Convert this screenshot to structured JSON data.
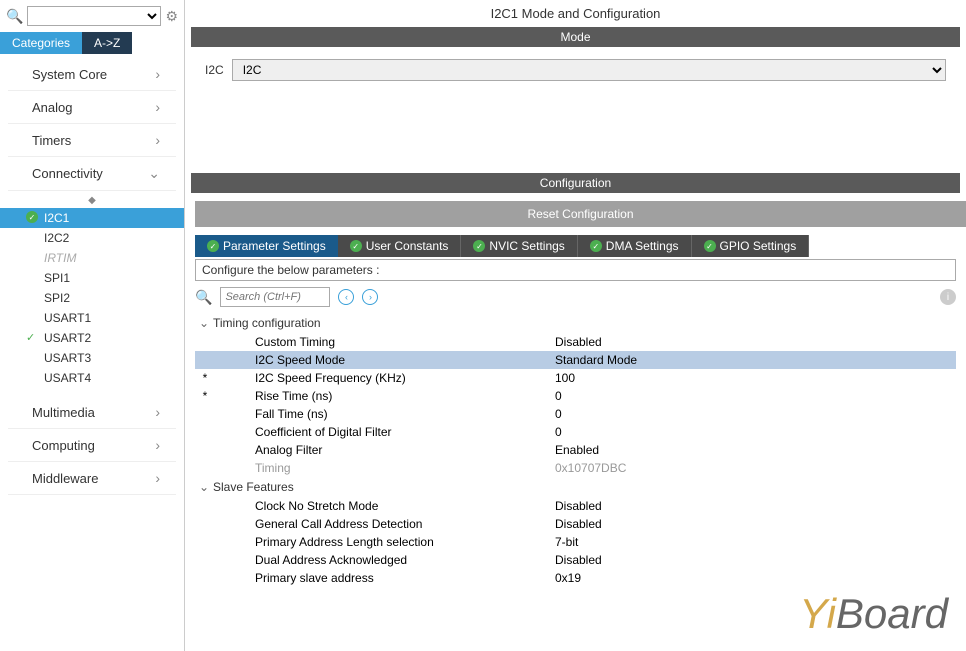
{
  "sidebar": {
    "tabs": {
      "categories": "Categories",
      "az": "A->Z"
    },
    "categories": [
      {
        "label": "System Core",
        "expanded": false
      },
      {
        "label": "Analog",
        "expanded": false
      },
      {
        "label": "Timers",
        "expanded": false
      },
      {
        "label": "Connectivity",
        "expanded": true
      },
      {
        "label": "Multimedia",
        "expanded": false
      },
      {
        "label": "Computing",
        "expanded": false
      },
      {
        "label": "Middleware",
        "expanded": false
      }
    ],
    "connectivity_items": [
      {
        "label": "I2C1",
        "selected": true,
        "checked": true
      },
      {
        "label": "I2C2"
      },
      {
        "label": "IRTIM",
        "disabled": true
      },
      {
        "label": "SPI1"
      },
      {
        "label": "SPI2"
      },
      {
        "label": "USART1"
      },
      {
        "label": "USART2",
        "checked": true
      },
      {
        "label": "USART3"
      },
      {
        "label": "USART4"
      }
    ]
  },
  "main": {
    "title": "I2C1 Mode and Configuration",
    "mode_header": "Mode",
    "mode_label": "I2C",
    "mode_value": "I2C",
    "config_header": "Configuration",
    "reset_button": "Reset Configuration",
    "settings_tabs": [
      {
        "label": "Parameter Settings",
        "active": true
      },
      {
        "label": "User Constants"
      },
      {
        "label": "NVIC Settings"
      },
      {
        "label": "DMA Settings"
      },
      {
        "label": "GPIO Settings"
      }
    ],
    "configure_hint": "Configure the below parameters :",
    "search_placeholder": "Search (Ctrl+F)",
    "groups": [
      {
        "title": "Timing configuration",
        "rows": [
          {
            "label": "Custom Timing",
            "value": "Disabled"
          },
          {
            "label": "I2C Speed Mode",
            "value": "Standard Mode",
            "highlighted": true
          },
          {
            "label": "I2C Speed Frequency (KHz)",
            "value": "100",
            "star": true
          },
          {
            "label": "Rise Time (ns)",
            "value": "0",
            "star": true
          },
          {
            "label": "Fall Time (ns)",
            "value": "0"
          },
          {
            "label": "Coefficient of Digital Filter",
            "value": "0"
          },
          {
            "label": "Analog Filter",
            "value": "Enabled"
          },
          {
            "label": "Timing",
            "value": "0x10707DBC",
            "dim": true
          }
        ]
      },
      {
        "title": "Slave Features",
        "rows": [
          {
            "label": "Clock No Stretch Mode",
            "value": "Disabled"
          },
          {
            "label": "General Call Address Detection",
            "value": "Disabled"
          },
          {
            "label": "Primary Address Length selection",
            "value": "7-bit"
          },
          {
            "label": "Dual Address Acknowledged",
            "value": "Disabled"
          },
          {
            "label": "Primary slave address",
            "value": "0x19"
          }
        ]
      }
    ]
  },
  "watermark": {
    "yi": "Yi",
    "board": "Board"
  }
}
